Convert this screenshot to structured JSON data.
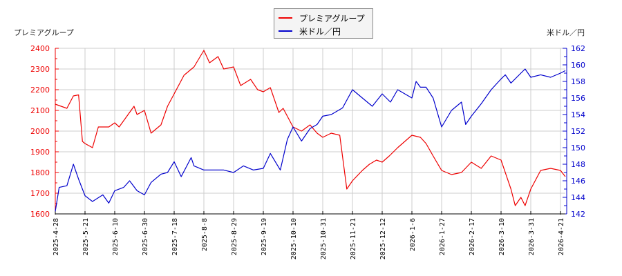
{
  "legend": {
    "series1_label": "プレミアグループ",
    "series2_label": "米ドル／円"
  },
  "axes": {
    "left_title": "プレミアグループ",
    "right_title": "米ドル／円"
  },
  "colors": {
    "series1": "#ee0000",
    "series2": "#0000cc",
    "grid": "#cccccc"
  },
  "chart_data": {
    "type": "line",
    "title": "",
    "xlabel": "",
    "ylabel_left": "プレミアグループ",
    "ylabel_right": "米ドル／円",
    "ylim_left": [
      1600,
      2400
    ],
    "ylim_right": [
      142,
      162
    ],
    "yticks_left": [
      1600,
      1700,
      1800,
      1900,
      2000,
      2100,
      2200,
      2300,
      2400
    ],
    "yticks_right": [
      142,
      144,
      146,
      148,
      150,
      152,
      154,
      156,
      158,
      160,
      162
    ],
    "xticks": [
      "2025-4-28",
      "2025-5-21",
      "2025-6-10",
      "2025-6-30",
      "2025-7-18",
      "2025-8-8",
      "2025-8-29",
      "2025-9-19",
      "2025-10-10",
      "2025-10-31",
      "2025-11-21",
      "2025-12-12",
      "2026-1-6",
      "2026-1-27",
      "2026-2-17",
      "2026-3-10",
      "2026-3-31",
      "2026-4-21"
    ],
    "grid": true,
    "legend_position": "top-center",
    "series": [
      {
        "name": "プレミアグループ",
        "axis": "left",
        "values_approx": [
          [
            "2025-4-28",
            2130
          ],
          [
            "2025-5-7",
            2110
          ],
          [
            "2025-5-12",
            2170
          ],
          [
            "2025-5-16",
            2175
          ],
          [
            "2025-5-19",
            1950
          ],
          [
            "2025-5-21",
            1940
          ],
          [
            "2025-5-26",
            1920
          ],
          [
            "2025-5-30",
            2020
          ],
          [
            "2025-6-6",
            2020
          ],
          [
            "2025-6-10",
            2040
          ],
          [
            "2025-6-13",
            2020
          ],
          [
            "2025-6-18",
            2070
          ],
          [
            "2025-6-23",
            2120
          ],
          [
            "2025-6-25",
            2080
          ],
          [
            "2025-6-30",
            2100
          ],
          [
            "2025-7-4",
            1990
          ],
          [
            "2025-7-10",
            2030
          ],
          [
            "2025-7-14",
            2120
          ],
          [
            "2025-7-18",
            2180
          ],
          [
            "2025-7-25",
            2270
          ],
          [
            "2025-8-1",
            2310
          ],
          [
            "2025-8-8",
            2390
          ],
          [
            "2025-8-12",
            2330
          ],
          [
            "2025-8-18",
            2360
          ],
          [
            "2025-8-22",
            2300
          ],
          [
            "2025-8-29",
            2310
          ],
          [
            "2025-9-3",
            2220
          ],
          [
            "2025-9-10",
            2250
          ],
          [
            "2025-9-15",
            2200
          ],
          [
            "2025-9-19",
            2190
          ],
          [
            "2025-9-24",
            2210
          ],
          [
            "2025-9-30",
            2090
          ],
          [
            "2025-10-3",
            2110
          ],
          [
            "2025-10-10",
            2020
          ],
          [
            "2025-10-16",
            2000
          ],
          [
            "2025-10-22",
            2030
          ],
          [
            "2025-10-27",
            1990
          ],
          [
            "2025-10-31",
            1970
          ],
          [
            "2025-11-6",
            1990
          ],
          [
            "2025-11-12",
            1980
          ],
          [
            "2025-11-17",
            1720
          ],
          [
            "2025-11-21",
            1760
          ],
          [
            "2025-11-28",
            1810
          ],
          [
            "2025-12-3",
            1840
          ],
          [
            "2025-12-8",
            1860
          ],
          [
            "2025-12-12",
            1850
          ],
          [
            "2025-12-18",
            1880
          ],
          [
            "2025-12-25",
            1920
          ],
          [
            "2026-1-6",
            1980
          ],
          [
            "2026-1-12",
            1970
          ],
          [
            "2026-1-16",
            1940
          ],
          [
            "2026-1-21",
            1880
          ],
          [
            "2026-1-27",
            1810
          ],
          [
            "2026-2-3",
            1790
          ],
          [
            "2026-2-10",
            1800
          ],
          [
            "2026-2-17",
            1850
          ],
          [
            "2026-2-24",
            1820
          ],
          [
            "2026-3-3",
            1880
          ],
          [
            "2026-3-10",
            1860
          ],
          [
            "2026-3-17",
            1720
          ],
          [
            "2026-3-20",
            1640
          ],
          [
            "2026-3-24",
            1680
          ],
          [
            "2026-3-27",
            1640
          ],
          [
            "2026-3-31",
            1720
          ],
          [
            "2026-4-7",
            1810
          ],
          [
            "2026-4-14",
            1820
          ],
          [
            "2026-4-21",
            1810
          ],
          [
            "2026-4-28",
            1780
          ]
        ]
      },
      {
        "name": "米ドル／円",
        "axis": "right",
        "values_approx": [
          [
            "2025-4-28",
            142.3
          ],
          [
            "2025-5-1",
            145.2
          ],
          [
            "2025-5-7",
            145.4
          ],
          [
            "2025-5-12",
            148.0
          ],
          [
            "2025-5-16",
            146.2
          ],
          [
            "2025-5-21",
            144.2
          ],
          [
            "2025-5-26",
            143.5
          ],
          [
            "2025-6-2",
            144.3
          ],
          [
            "2025-6-6",
            143.3
          ],
          [
            "2025-6-10",
            144.8
          ],
          [
            "2025-6-16",
            145.2
          ],
          [
            "2025-6-20",
            146.0
          ],
          [
            "2025-6-25",
            144.8
          ],
          [
            "2025-6-30",
            144.3
          ],
          [
            "2025-7-4",
            145.8
          ],
          [
            "2025-7-10",
            146.8
          ],
          [
            "2025-7-14",
            147.0
          ],
          [
            "2025-7-18",
            148.3
          ],
          [
            "2025-7-23",
            146.5
          ],
          [
            "2025-7-30",
            148.8
          ],
          [
            "2025-8-1",
            147.8
          ],
          [
            "2025-8-8",
            147.3
          ],
          [
            "2025-8-15",
            147.3
          ],
          [
            "2025-8-22",
            147.3
          ],
          [
            "2025-8-29",
            147.0
          ],
          [
            "2025-9-5",
            147.8
          ],
          [
            "2025-9-12",
            147.3
          ],
          [
            "2025-9-19",
            147.5
          ],
          [
            "2025-9-24",
            149.3
          ],
          [
            "2025-10-1",
            147.3
          ],
          [
            "2025-10-6",
            151.0
          ],
          [
            "2025-10-10",
            152.5
          ],
          [
            "2025-10-16",
            150.8
          ],
          [
            "2025-10-22",
            152.3
          ],
          [
            "2025-10-27",
            152.8
          ],
          [
            "2025-10-31",
            153.8
          ],
          [
            "2025-11-6",
            154.0
          ],
          [
            "2025-11-14",
            154.8
          ],
          [
            "2025-11-21",
            157.0
          ],
          [
            "2025-11-28",
            156.0
          ],
          [
            "2025-12-5",
            155.0
          ],
          [
            "2025-12-12",
            156.5
          ],
          [
            "2025-12-19",
            155.5
          ],
          [
            "2025-12-25",
            157.0
          ],
          [
            "2026-1-6",
            156.0
          ],
          [
            "2026-1-9",
            158.0
          ],
          [
            "2026-1-12",
            157.3
          ],
          [
            "2026-1-16",
            157.3
          ],
          [
            "2026-1-21",
            156.0
          ],
          [
            "2026-1-27",
            152.5
          ],
          [
            "2026-2-3",
            154.5
          ],
          [
            "2026-2-10",
            155.5
          ],
          [
            "2026-2-13",
            152.8
          ],
          [
            "2026-2-17",
            153.8
          ],
          [
            "2026-2-24",
            155.3
          ],
          [
            "2026-3-3",
            157.0
          ],
          [
            "2026-3-10",
            158.3
          ],
          [
            "2026-3-13",
            158.8
          ],
          [
            "2026-3-17",
            157.8
          ],
          [
            "2026-3-24",
            159.0
          ],
          [
            "2026-3-27",
            159.5
          ],
          [
            "2026-3-31",
            158.5
          ],
          [
            "2026-4-7",
            158.8
          ],
          [
            "2026-4-14",
            158.5
          ],
          [
            "2026-4-21",
            159.0
          ],
          [
            "2026-4-28",
            159.3
          ]
        ]
      }
    ]
  }
}
